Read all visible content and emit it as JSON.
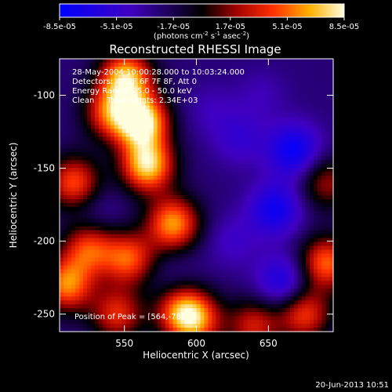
{
  "chart_data": {
    "type": "heatmap",
    "title": "Reconstructed RHESSI Image",
    "xlabel": "Heliocentric X (arcsec)",
    "ylabel": "Heliocentric Y (arcsec)",
    "xlim": [
      505,
      695
    ],
    "ylim": [
      -262,
      -75
    ],
    "x_ticks": [
      550,
      600,
      650
    ],
    "y_ticks": [
      -100,
      -150,
      -200,
      -250
    ],
    "colorbar": {
      "min": -8.5e-05,
      "max": 8.5e-05,
      "tick_labels": [
        "-8.5e-05",
        "-5.1e-05",
        "-1.7e-05",
        "1.7e-05",
        "5.1e-05",
        "8.5e-05"
      ],
      "unit_label": "(photons cm",
      "unit_exp1": "-2",
      "unit_mid": " s",
      "unit_exp2": "-1",
      "unit_tail": " asec",
      "unit_exp3": "-2",
      "unit_close": ")"
    },
    "annotations": [
      "28-May-2004 10:00:28.000 to 10:03:24.000",
      "Detectors: 4F 5F 6F 7F 8F, Att 0",
      "Energy Range: 25.0 - 50.0 keV",
      "Clean     Total counts: 2.34E+03"
    ],
    "peak_label": "Position of Peak = [564,-78]",
    "peak": [
      564,
      -78
    ],
    "sources": [
      {
        "x": 551,
        "y": -88,
        "value": 7e-05
      },
      {
        "x": 562,
        "y": -118,
        "value": 8.5e-05
      },
      {
        "x": 566,
        "y": -148,
        "value": 7.5e-05
      },
      {
        "x": 540,
        "y": -112,
        "value": 4e-05
      },
      {
        "x": 584,
        "y": -188,
        "value": 6e-05
      },
      {
        "x": 515,
        "y": -160,
        "value": 4.5e-05
      },
      {
        "x": 525,
        "y": -205,
        "value": 4e-05
      },
      {
        "x": 510,
        "y": -230,
        "value": 5.5e-05
      },
      {
        "x": 553,
        "y": -212,
        "value": 4.5e-05
      },
      {
        "x": 545,
        "y": -250,
        "value": 3.5e-05
      },
      {
        "x": 590,
        "y": -248,
        "value": 4.5e-05
      },
      {
        "x": 600,
        "y": -255,
        "value": 3.5e-05
      },
      {
        "x": 690,
        "y": -215,
        "value": 5e-05
      },
      {
        "x": 675,
        "y": -250,
        "value": 4e-05
      },
      {
        "x": 640,
        "y": -258,
        "value": 3e-05
      },
      {
        "x": 690,
        "y": -160,
        "value": 2e-05
      },
      {
        "x": 668,
        "y": -138,
        "value": -8e-05
      },
      {
        "x": 655,
        "y": -178,
        "value": -7.5e-05
      },
      {
        "x": 660,
        "y": -228,
        "value": -7e-05
      },
      {
        "x": 610,
        "y": -110,
        "value": -4e-05
      },
      {
        "x": 630,
        "y": -130,
        "value": -5e-05
      },
      {
        "x": 645,
        "y": -100,
        "value": -4e-05
      },
      {
        "x": 625,
        "y": -200,
        "value": -4.5e-05
      },
      {
        "x": 530,
        "y": -180,
        "value": -4e-05
      },
      {
        "x": 585,
        "y": -225,
        "value": -3.5e-05
      }
    ],
    "date_stamp": "20-Jun-2013 10:51"
  }
}
